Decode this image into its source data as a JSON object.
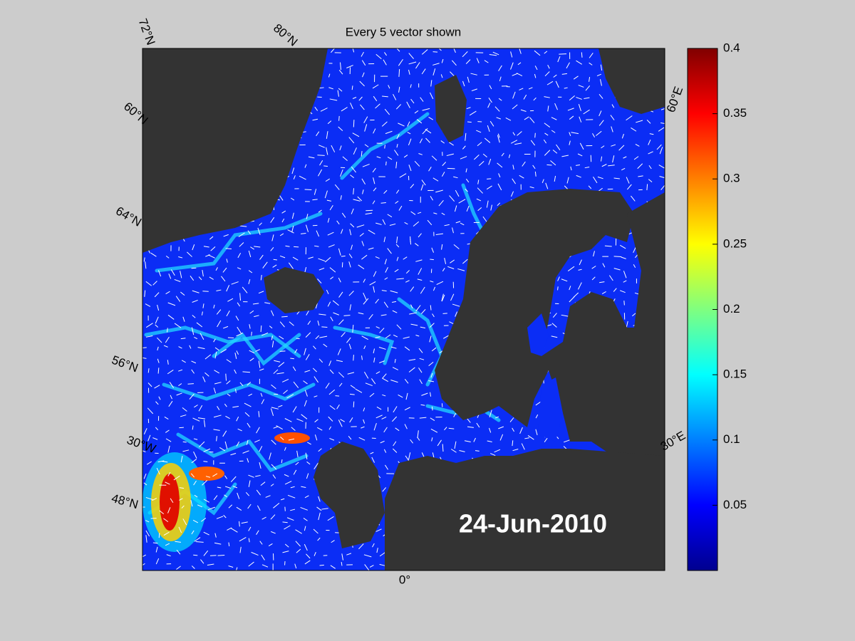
{
  "title": "Every 5 vector shown",
  "date_label": "24-Jun-2010",
  "graticule_labels": [
    "72°N",
    "80°N",
    "60°E",
    "60°N",
    "64°N",
    "56°N",
    "30°W",
    "48°N",
    "0°",
    "30°E"
  ],
  "colorbar": {
    "ylim": [
      0,
      0.4
    ],
    "yticks": [
      0.05,
      0.1,
      0.15,
      0.2,
      0.25,
      0.3,
      0.35,
      0.4
    ],
    "colormap": "jet"
  }
}
